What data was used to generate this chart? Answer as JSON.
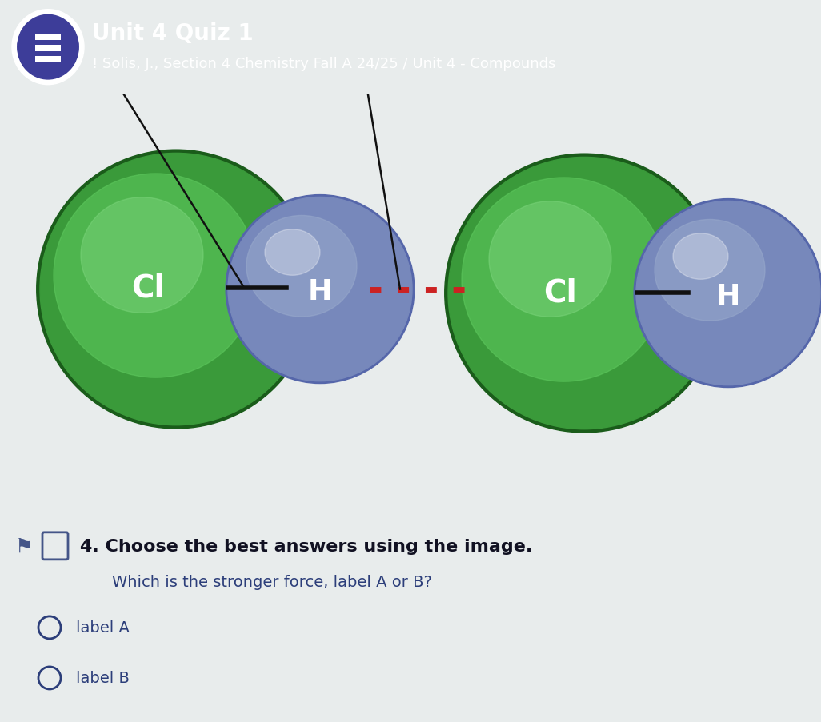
{
  "header_bg": "#3d3d99",
  "header_title": "Unit 4 Quiz 1",
  "header_subtitle": "! Solis, J., Section 4 Chemistry Fall A 24/25 / Unit 4 - Compounds",
  "header_title_size": 20,
  "header_subtitle_size": 13,
  "bg_color": "#e8ecec",
  "mol_bg_color": "#dde5e8",
  "question_bold": "4. Choose the best answers using the image.",
  "question_text": "Which is the stronger force, label A or B?",
  "option_a": "label A",
  "option_b": "label B",
  "text_color_dark": "#2c3e7a",
  "text_color_question": "#111122",
  "line_color_solid": "#111111",
  "line_color_dotted": "#cc2222",
  "cl_dark": "#1a5c1a",
  "cl_mid": "#3a9a3a",
  "cl_light": "#5dc85d",
  "cl_highlight": "#80d880",
  "h_dark": "#5566aa",
  "h_mid": "#7788bb",
  "h_light": "#99aacc"
}
